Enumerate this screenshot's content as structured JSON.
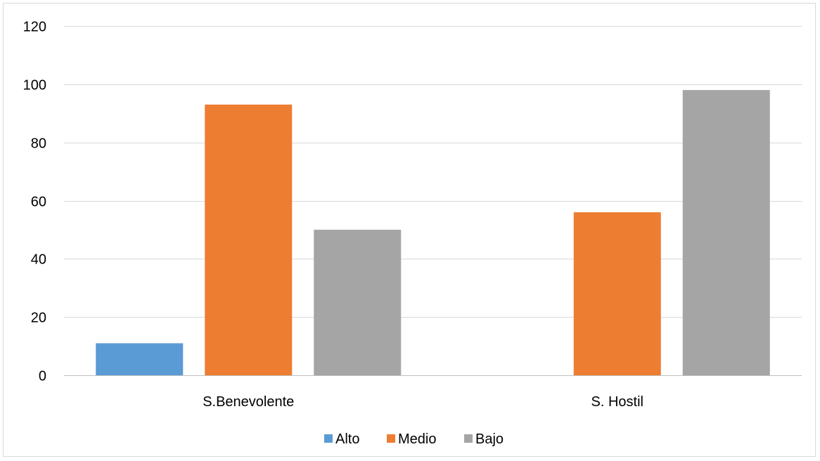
{
  "chart_data": {
    "type": "bar",
    "title": "",
    "xlabel": "",
    "ylabel": "",
    "categories": [
      "S.Benevolente",
      "S. Hostil"
    ],
    "series": [
      {
        "name": "Alto",
        "values": [
          11,
          0
        ],
        "color": "#5b9bd5"
      },
      {
        "name": "Medio",
        "values": [
          93,
          56
        ],
        "color": "#ed7d31"
      },
      {
        "name": "Bajo",
        "values": [
          50,
          98
        ],
        "color": "#a5a5a5"
      }
    ],
    "ylim": [
      0,
      120
    ],
    "yticks": [
      "0",
      "20",
      "40",
      "60",
      "80",
      "100",
      "120"
    ],
    "grid": true,
    "legend_position": "bottom",
    "gridline_color": "#d9d9d9",
    "axis_color": "#bfbfbf"
  }
}
